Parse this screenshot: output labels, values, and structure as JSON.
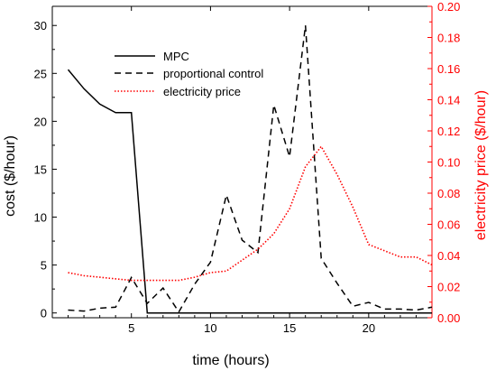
{
  "chart_data": {
    "type": "line",
    "xlabel": "time (hours)",
    "ylabel": "cost ($/hour)",
    "y2label": "electricity price ($/hour)",
    "xlim": [
      0,
      24
    ],
    "ylim": [
      -0.5,
      32
    ],
    "y2lim": [
      0,
      0.2
    ],
    "x_ticks": [
      0,
      5,
      10,
      15,
      20
    ],
    "y_ticks": [
      0,
      5,
      10,
      15,
      20,
      25,
      30
    ],
    "y2_ticks": [
      0.0,
      0.02,
      0.04,
      0.06,
      0.08,
      0.1,
      0.12,
      0.14,
      0.16,
      0.18,
      0.2
    ],
    "x_tick_labels": [
      "",
      "5",
      "10",
      "15",
      "20"
    ],
    "y_tick_labels": [
      "0",
      "5",
      "10",
      "15",
      "20",
      "25",
      "30"
    ],
    "y2_tick_labels": [
      "0.00",
      "0.02",
      "0.04",
      "0.06",
      "0.08",
      "0.10",
      "0.12",
      "0.14",
      "0.16",
      "0.18",
      "0.20"
    ],
    "grid": false,
    "legend_position": "top-center",
    "colors": {
      "axis_left": "#000000",
      "axis_right": "#ff0000"
    },
    "series": [
      {
        "name": "MPC",
        "axis": "left",
        "style": "solid",
        "color": "#000000",
        "x": [
          1,
          2,
          3,
          4,
          5,
          6,
          7,
          8,
          9,
          10,
          11,
          12,
          13,
          14,
          15,
          16,
          17,
          18,
          19,
          20,
          21,
          22,
          23,
          24
        ],
        "values": [
          25.4,
          23.4,
          21.8,
          20.9,
          20.9,
          0,
          0,
          0,
          0,
          0,
          0,
          0,
          0,
          0,
          0,
          0,
          0,
          0,
          0,
          0,
          0,
          0,
          0,
          0
        ]
      },
      {
        "name": "proportional control",
        "axis": "left",
        "style": "dashed",
        "color": "#000000",
        "x": [
          1,
          2,
          3,
          4,
          5,
          6,
          7,
          8,
          9,
          10,
          11,
          12,
          13,
          14,
          15,
          16,
          17,
          18,
          19,
          20,
          21,
          22,
          23,
          24
        ],
        "values": [
          0.3,
          0.2,
          0.5,
          0.6,
          3.7,
          1.0,
          2.6,
          0.1,
          3.0,
          5.3,
          12.3,
          7.6,
          6.3,
          21.7,
          16.3,
          30.0,
          5.7,
          3.1,
          0.7,
          1.1,
          0.4,
          0.4,
          0.3,
          0.6
        ]
      },
      {
        "name": "electricity price",
        "axis": "right",
        "style": "dotted",
        "color": "#ff0000",
        "x": [
          1,
          2,
          3,
          4,
          5,
          6,
          7,
          8,
          9,
          10,
          11,
          12,
          13,
          14,
          15,
          16,
          17,
          18,
          19,
          20,
          21,
          22,
          23,
          24
        ],
        "values": [
          0.029,
          0.027,
          0.026,
          0.025,
          0.024,
          0.024,
          0.024,
          0.024,
          0.026,
          0.029,
          0.03,
          0.037,
          0.044,
          0.054,
          0.07,
          0.097,
          0.11,
          0.092,
          0.071,
          0.047,
          0.043,
          0.039,
          0.039,
          0.034
        ]
      }
    ]
  }
}
